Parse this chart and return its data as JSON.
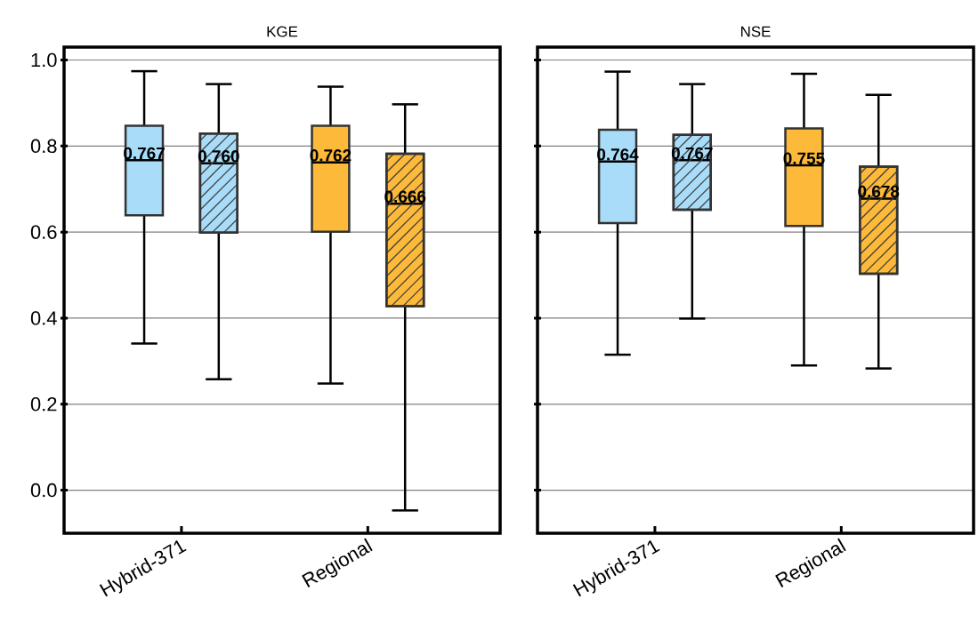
{
  "chart_data": [
    {
      "type": "box",
      "title": "KGE",
      "categories": [
        "Hybrid-371",
        "Regional"
      ],
      "ylim": [
        -0.1,
        1.03
      ],
      "yticks": [
        {
          "value": 0,
          "label": "0.0"
        },
        {
          "value": 0.2,
          "label": "0.2"
        },
        {
          "value": 0.4,
          "label": "0.4"
        },
        {
          "value": 0.6,
          "label": "0.6"
        },
        {
          "value": 0.8,
          "label": "0.8"
        },
        {
          "value": 1,
          "label": "1.0"
        }
      ],
      "grid": "y",
      "series": [
        {
          "colors": [
            "#a8dcf8",
            "#fdb93a"
          ],
          "boxes": [
            {
              "low": 0.341,
              "q1": 0.639,
              "median": 0.767,
              "q3": 0.847,
              "high": 0.974
            },
            {
              "low": 0.248,
              "q1": 0.601,
              "median": 0.762,
              "q3": 0.847,
              "high": 0.938
            }
          ],
          "value_labels": [
            "0.767",
            "0.762"
          ]
        },
        {
          "colors": [
            "#a8dcf8",
            "#fdb93a"
          ],
          "boxes": [
            {
              "low": 0.258,
              "q1": 0.599,
              "median": 0.76,
              "q3": 0.829,
              "high": 0.944
            },
            {
              "low": -0.047,
              "q1": 0.428,
              "median": 0.666,
              "q3": 0.782,
              "high": 0.897
            }
          ],
          "value_labels": [
            "0.760",
            "0.666"
          ]
        }
      ]
    },
    {
      "type": "box",
      "title": "NSE",
      "categories": [
        "Hybrid-371",
        "Regional"
      ],
      "ylim": [
        -0.1,
        1.03
      ],
      "yticks": [
        0,
        0.2,
        0.4,
        0.6,
        0.8,
        1
      ],
      "grid": "y",
      "tick_labels": "x",
      "series": [
        {
          "colors": [
            "#a8dcf8",
            "#fdb93a"
          ],
          "boxes": [
            {
              "low": 0.315,
              "q1": 0.621,
              "median": 0.764,
              "q3": 0.838,
              "high": 0.973
            },
            {
              "low": 0.29,
              "q1": 0.614,
              "median": 0.755,
              "q3": 0.841,
              "high": 0.968
            }
          ],
          "value_labels": [
            "0.764",
            "0.755"
          ]
        },
        {
          "colors": [
            "#a8dcf8",
            "#fdb93a"
          ],
          "boxes": [
            {
              "low": 0.399,
              "q1": 0.652,
              "median": 0.767,
              "q3": 0.826,
              "high": 0.944
            },
            {
              "low": 0.283,
              "q1": 0.503,
              "median": 0.678,
              "q3": 0.752,
              "high": 0.919
            }
          ],
          "value_labels": [
            "0.767",
            "0.678"
          ]
        }
      ]
    }
  ]
}
